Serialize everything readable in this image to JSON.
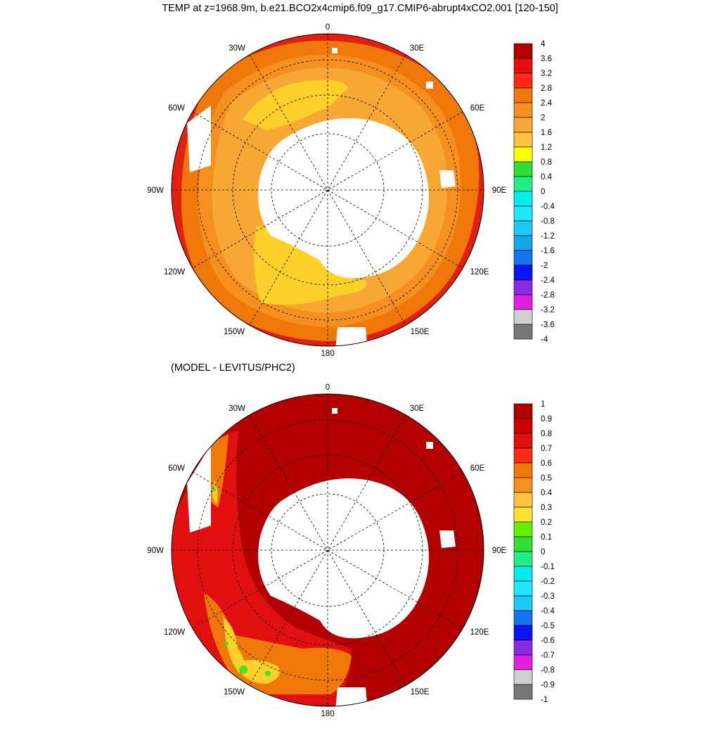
{
  "title": "TEMP at z=1968.9m, b.e21.BCO2x4cmip6.f09_g17.CMIP6-abrupt4xCO2.001 [120-150]",
  "subtitle": "(MODEL - LEVITUS/PHC2)",
  "longitude_labels": {
    "north": "0",
    "ne": "30E",
    "e_upper": "60E",
    "east": "90E",
    "e_lower": "120E",
    "se": "150E",
    "south": "180",
    "sw": "150W",
    "w_lower": "120W",
    "west": "90W",
    "w_upper": "60W",
    "nw": "30W"
  },
  "colorbars": {
    "top": {
      "labels": [
        "4",
        "3.6",
        "3.2",
        "2.8",
        "2.4",
        "2",
        "1.6",
        "1.2",
        "0.8",
        "0.4",
        "0",
        "-0.4",
        "-0.8",
        "-1.2",
        "-1.6",
        "-2",
        "-2.4",
        "-2.8",
        "-3.2",
        "-3.6",
        "-4"
      ],
      "colors": [
        "#b30000",
        "#e60f0f",
        "#ff2a1a",
        "#f0780a",
        "#f59020",
        "#f7a834",
        "#fdc340",
        "#ffff00",
        "#33dd33",
        "#22ee88",
        "#00eeee",
        "#22e6ff",
        "#1fc8f5",
        "#15a6ee",
        "#1475ee",
        "#0a14f0",
        "#8a2be2",
        "#e020e0",
        "#cfcfcf",
        "#777777"
      ]
    },
    "bottom": {
      "labels": [
        "1",
        "0.9",
        "0.8",
        "0.7",
        "0.6",
        "0.5",
        "0.4",
        "0.3",
        "0.2",
        "0.1",
        "0",
        "-0.1",
        "-0.2",
        "-0.3",
        "-0.4",
        "-0.5",
        "-0.6",
        "-0.7",
        "-0.8",
        "-0.9",
        "-1"
      ],
      "colors": [
        "#b30000",
        "#cc0000",
        "#e01010",
        "#ff2a1a",
        "#f0780a",
        "#f59020",
        "#fdc340",
        "#ffe033",
        "#66ee00",
        "#33dd33",
        "#22ee88",
        "#00eeee",
        "#22e6ff",
        "#1fc8f5",
        "#1475ee",
        "#0a14f0",
        "#8a2be2",
        "#e020e0",
        "#cfcfcf",
        "#777777"
      ]
    }
  },
  "field_colors": {
    "land": "#ffffff",
    "top_outer": "#e21f10",
    "top_ring1": "#f0780a",
    "top_ring2": "#f59020",
    "top_ring3": "#f7a834",
    "top_inner": "#fdd02a",
    "bottom_base": "#b30000",
    "bottom_warm": "#e01010",
    "bottom_orange": "#f0780a",
    "bottom_yellow": "#fdd02a",
    "bottom_green": "#44e62a"
  }
}
